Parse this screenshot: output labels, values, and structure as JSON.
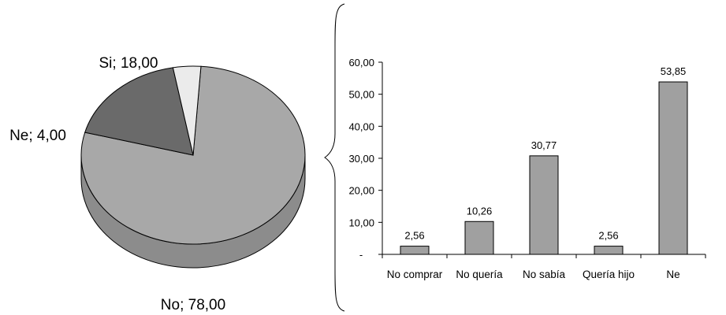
{
  "chart_data": [
    {
      "type": "pie",
      "style": "3d",
      "slices": [
        {
          "label": "No",
          "value": 78.0,
          "display": "No;  78,00",
          "color": "#a8a8a8",
          "side_color": "#8c8c8c"
        },
        {
          "label": "Si",
          "value": 18.0,
          "display": "Si;  18,00",
          "color": "#6a6a6a",
          "side_color": "#555555"
        },
        {
          "label": "Ne",
          "value": 4.0,
          "display": "Ne;  4,00",
          "color": "#ebebeb",
          "side_color": "#cfcfcf"
        }
      ]
    },
    {
      "type": "bar",
      "categories": [
        "No comprar",
        "No quería",
        "No sabía",
        "Quería hijo",
        "Ne"
      ],
      "values": [
        2.56,
        10.26,
        30.77,
        2.56,
        53.85
      ],
      "data_labels": [
        "2,56",
        "10,26",
        "30,77",
        "2,56",
        "53,85"
      ],
      "ylim": [
        0,
        60
      ],
      "yticks": [
        {
          "value": 0,
          "label": "-"
        },
        {
          "value": 10,
          "label": "10,00"
        },
        {
          "value": 20,
          "label": "20,00"
        },
        {
          "value": 30,
          "label": "30,00"
        },
        {
          "value": 40,
          "label": "40,00"
        },
        {
          "value": 50,
          "label": "50,00"
        },
        {
          "value": 60,
          "label": "60,00"
        }
      ],
      "bar_color": "#a0a0a0",
      "grid": false,
      "legend": "none"
    }
  ]
}
